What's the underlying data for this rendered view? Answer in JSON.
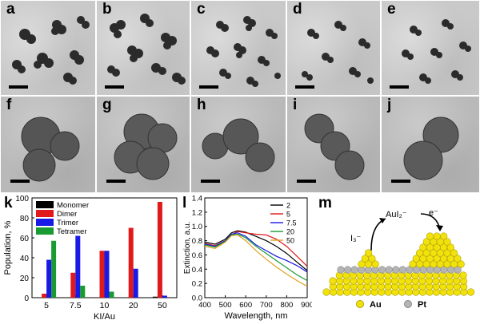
{
  "panel_labels": {
    "a": "a",
    "b": "b",
    "c": "c",
    "d": "d",
    "e": "e",
    "f": "f",
    "g": "g",
    "h": "h",
    "i": "i",
    "j": "j",
    "k": "k",
    "l": "l",
    "m": "m"
  },
  "chart_data": [
    {
      "type": "bar",
      "categories": [
        "5",
        "7.5",
        "10",
        "20",
        "50"
      ],
      "xlabel": "KI/Au",
      "ylabel": "Population, %",
      "ylim": [
        0,
        100
      ],
      "yticks": [
        "0",
        "20",
        "40",
        "60",
        "80",
        "100"
      ],
      "legend_position": "top-left",
      "series": [
        {
          "name": "Monomer",
          "color": "#000000",
          "values": [
            0,
            0,
            0,
            0,
            1
          ]
        },
        {
          "name": "Dimer",
          "color": "#e0191b",
          "values": [
            4,
            25,
            47,
            70,
            96
          ]
        },
        {
          "name": "Trimer",
          "color": "#1a1ae6",
          "values": [
            38,
            62,
            47,
            29,
            2
          ]
        },
        {
          "name": "Tetramer",
          "color": "#1a9a32",
          "values": [
            57,
            12,
            6,
            0,
            0
          ]
        }
      ]
    },
    {
      "type": "line",
      "xlabel": "Wavelength, nm",
      "ylabel": "Extinction, a.u.",
      "xlim": [
        400,
        900
      ],
      "ylim": [
        0,
        1.4
      ],
      "xticks": [
        "400",
        "500",
        "600",
        "700",
        "800",
        "900"
      ],
      "yticks": [
        "0.0",
        "0.2",
        "0.4",
        "0.6",
        "0.8",
        "1.0",
        "1.2",
        "1.4"
      ],
      "legend_position": "top-right",
      "series": [
        {
          "name": "2",
          "color": "#000000",
          "x": [
            400,
            450,
            500,
            530,
            560,
            600,
            650,
            700,
            750,
            800,
            850,
            900
          ],
          "y": [
            0.78,
            0.75,
            0.82,
            0.91,
            0.94,
            0.92,
            0.86,
            0.8,
            0.72,
            0.62,
            0.5,
            0.38
          ]
        },
        {
          "name": "5",
          "color": "#e0191b",
          "x": [
            400,
            450,
            500,
            530,
            560,
            600,
            650,
            700,
            750,
            800,
            850,
            900
          ],
          "y": [
            0.76,
            0.73,
            0.8,
            0.88,
            0.93,
            0.91,
            0.89,
            0.88,
            0.82,
            0.72,
            0.58,
            0.44
          ]
        },
        {
          "name": "7.5",
          "color": "#1a1ae6",
          "x": [
            400,
            450,
            500,
            530,
            560,
            600,
            650,
            700,
            750,
            800,
            850,
            900
          ],
          "y": [
            0.75,
            0.72,
            0.8,
            0.89,
            0.91,
            0.86,
            0.74,
            0.66,
            0.58,
            0.52,
            0.45,
            0.36
          ]
        },
        {
          "name": "20",
          "color": "#1a9a32",
          "x": [
            400,
            450,
            500,
            530,
            560,
            600,
            650,
            700,
            750,
            800,
            850,
            900
          ],
          "y": [
            0.74,
            0.71,
            0.79,
            0.88,
            0.89,
            0.84,
            0.72,
            0.62,
            0.52,
            0.42,
            0.32,
            0.24
          ]
        },
        {
          "name": "50",
          "color": "#e0a020",
          "x": [
            400,
            450,
            500,
            530,
            560,
            600,
            650,
            700,
            750,
            800,
            850,
            900
          ],
          "y": [
            0.72,
            0.69,
            0.78,
            0.87,
            0.88,
            0.8,
            0.66,
            0.54,
            0.43,
            0.33,
            0.24,
            0.16
          ]
        }
      ]
    }
  ],
  "scheme": {
    "i3_label": "I₃⁻",
    "aui2_label": "AuI₂⁻",
    "electron_label": "e⁻",
    "au_legend": "Au",
    "pt_legend": "Pt",
    "au_color": "#f2e20c",
    "pt_color": "#b4b4b4"
  }
}
